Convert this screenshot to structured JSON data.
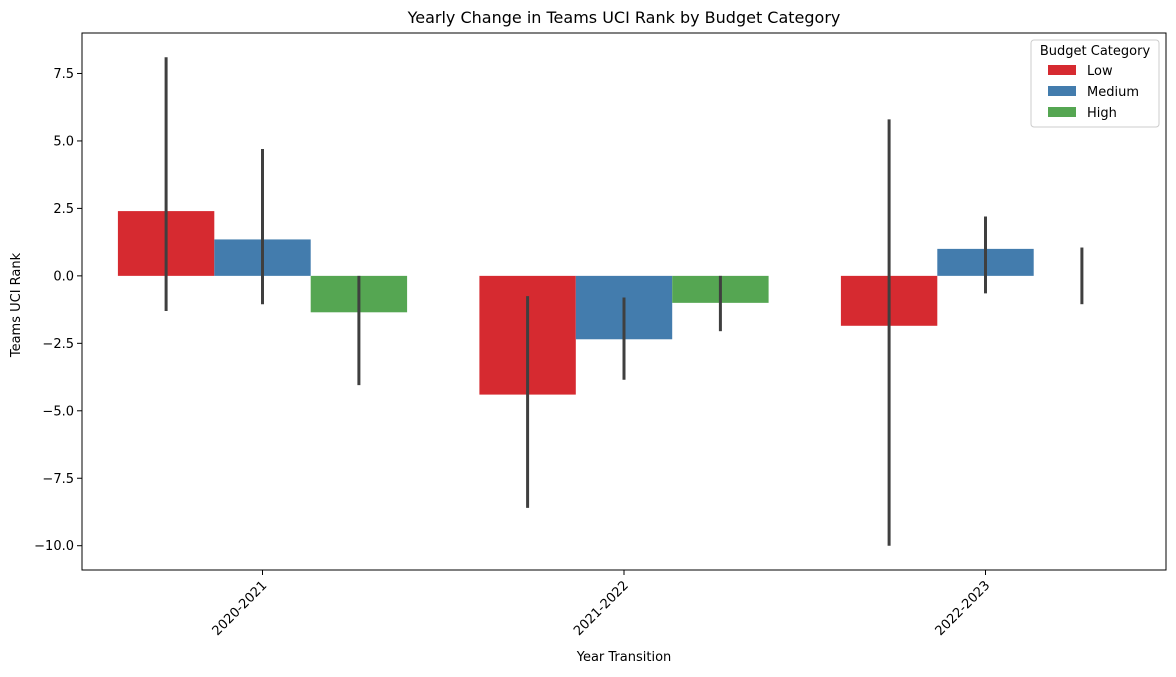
{
  "chart_data": {
    "type": "bar",
    "title": "Yearly Change in Teams UCI Rank by Budget Category",
    "xlabel": "Year Transition",
    "ylabel": "Teams UCI Rank",
    "categories": [
      "2020-2021",
      "2021-2022",
      "2022-2023"
    ],
    "ylim": [
      -10.9,
      9.0
    ],
    "yticks": [
      -10.0,
      -7.5,
      -5.0,
      -2.5,
      0.0,
      2.5,
      5.0,
      7.5
    ],
    "ytick_labels": [
      "−10.0",
      "−7.5",
      "−5.0",
      "−2.5",
      "0.0",
      "2.5",
      "5.0",
      "7.5"
    ],
    "grid": false,
    "legend": {
      "title": "Budget Category",
      "placement": "top-right"
    },
    "series": [
      {
        "name": "Low",
        "color": "#d62a30",
        "values": [
          2.4,
          -4.4,
          -1.85
        ],
        "error_low": [
          -1.3,
          -8.6,
          -10.0
        ],
        "error_high": [
          8.1,
          -0.75,
          5.8
        ]
      },
      {
        "name": "Medium",
        "color": "#437cad",
        "values": [
          1.35,
          -2.35,
          1.0
        ],
        "error_low": [
          -1.05,
          -3.85,
          -0.65
        ],
        "error_high": [
          4.7,
          -0.8,
          2.2
        ]
      },
      {
        "name": "High",
        "color": "#55a652",
        "values": [
          -1.35,
          -1.0,
          0.0
        ],
        "error_low": [
          -4.05,
          -2.05,
          -1.05
        ],
        "error_high": [
          0.0,
          0.0,
          1.05
        ]
      }
    ]
  }
}
